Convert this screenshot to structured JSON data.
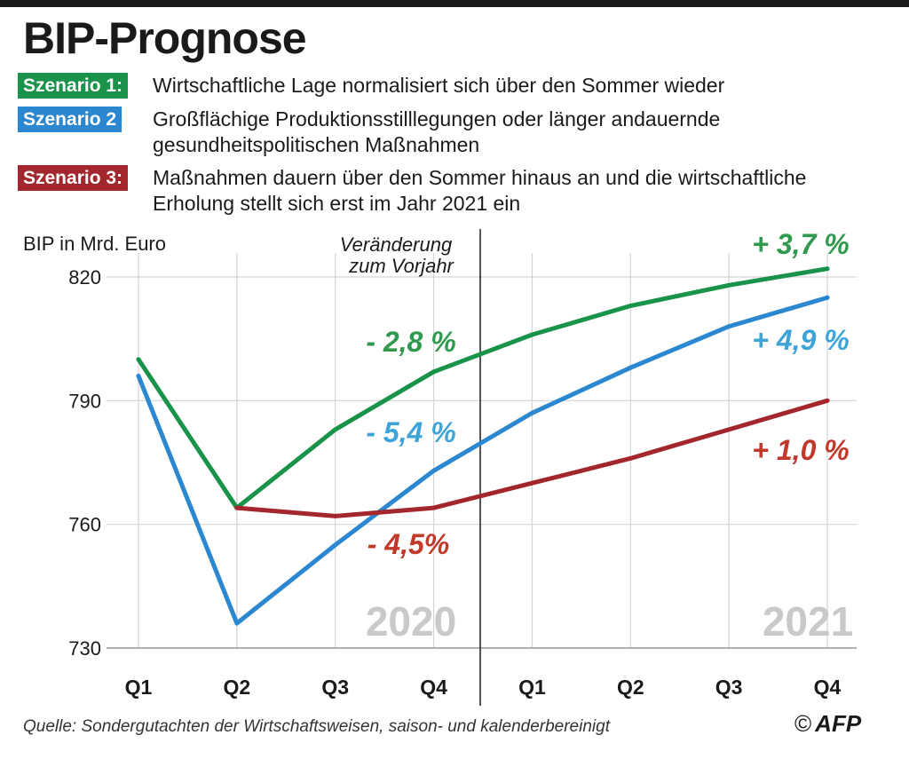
{
  "title": "BIP-Prognose",
  "scenarios": [
    {
      "label": "Szenario 1:",
      "text": "Wirtschaftliche Lage normalisiert sich über den Sommer wieder",
      "color": "#19934a"
    },
    {
      "label": "Szenario 2",
      "text": "Großflächige Produktionsstilllegungen oder länger andauernde gesundheitspolitischen Maßnahmen",
      "color": "#2a87d0"
    },
    {
      "label": "Szenario 3:",
      "text": "Maßnahmen dauern über den Sommer hinaus an und die wirtschaftliche Erholung stellt sich erst im Jahr 2021 ein",
      "color": "#a2262c"
    }
  ],
  "source": "Quelle: Sondergutachten der Wirtschaftsweisen, saison- und kalenderbereinigt",
  "credit": {
    "copyright": "©",
    "agency": "AFP"
  },
  "chart_data": {
    "type": "line",
    "ylabel": "BIP in Mrd. Euro",
    "ylim": [
      730,
      820
    ],
    "yticks": [
      730,
      760,
      790,
      820
    ],
    "categories": [
      "Q1",
      "Q2",
      "Q3",
      "Q4",
      "Q1",
      "Q2",
      "Q3",
      "Q4"
    ],
    "year_labels": [
      "2020",
      "2021"
    ],
    "annotation": "Veränderung zum Vorjahr",
    "series": [
      {
        "name": "Szenario 1",
        "color": "#19934a",
        "values": [
          800,
          764,
          783,
          797,
          806,
          813,
          818,
          822
        ],
        "change_2020": "- 2,8 %",
        "change_2021": "+ 3,7 %"
      },
      {
        "name": "Szenario 2",
        "color": "#2a87d0",
        "values": [
          796,
          736,
          755,
          773,
          787,
          798,
          808,
          815
        ],
        "change_2020": "- 5,4 %",
        "change_2021": "+ 4,9 %"
      },
      {
        "name": "Szenario 3",
        "color": "#a2262c",
        "values": [
          null,
          764,
          762,
          764,
          770,
          776,
          783,
          790
        ],
        "change_2020": "- 4,5%",
        "change_2021": "+ 1,0 %"
      }
    ],
    "label_colors": {
      "green": "#2f9a4e",
      "blue": "#3ea4d8",
      "red": "#c0392b"
    }
  }
}
